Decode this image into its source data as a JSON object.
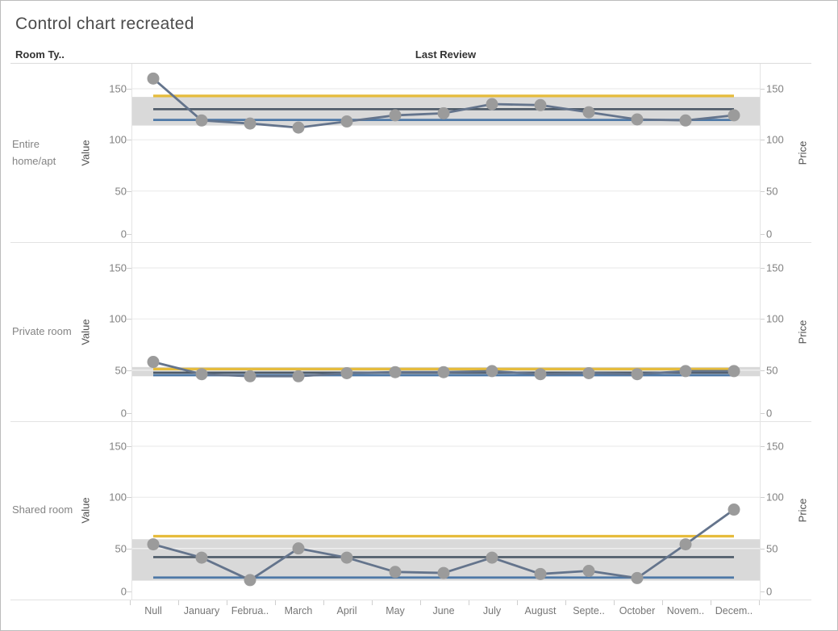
{
  "title": "Control chart recreated",
  "row_header": "Room Ty..",
  "column_header": "Last Review",
  "axes": {
    "left_title": "Value",
    "right_title": "Price",
    "ticks": [
      0,
      50,
      100,
      150
    ],
    "x_labels": [
      "Null",
      "January",
      "Februa..",
      "March",
      "April",
      "May",
      "June",
      "July",
      "August",
      "Septe..",
      "October",
      "Novem..",
      "Decem.."
    ]
  },
  "colors": {
    "ucl_line": "#e6bc3c",
    "center_line": "#4d5a68",
    "lcl_line": "#4e79a7",
    "series_line": "#64748c",
    "marker": "#9b9b9b",
    "band": "#d9d9d9",
    "gridline": "#efefef"
  },
  "chart_data": [
    {
      "type": "line",
      "row_label": "Entire home/apt",
      "categories": [
        "Null",
        "January",
        "Februa..",
        "March",
        "April",
        "May",
        "June",
        "July",
        "August",
        "Septe..",
        "October",
        "Novem..",
        "Decem.."
      ],
      "values": [
        160,
        119,
        116,
        112,
        118,
        124,
        126,
        135,
        134,
        127,
        120,
        119,
        124
      ],
      "ucl": 143,
      "center": 130,
      "lcl": 119.5,
      "band": [
        114,
        142
      ],
      "ylabel_left": "Value",
      "ylabel_right": "Price",
      "ylim": [
        0,
        174
      ],
      "grid": true
    },
    {
      "type": "line",
      "row_label": "Private room",
      "categories": [
        "Null",
        "January",
        "Februa..",
        "March",
        "April",
        "May",
        "June",
        "July",
        "August",
        "Septe..",
        "October",
        "Novem..",
        "Decem.."
      ],
      "values": [
        58,
        46,
        44,
        44,
        47,
        48,
        48,
        49,
        46,
        47,
        46,
        49,
        49
      ],
      "ucl": 51,
      "center": 47.5,
      "lcl": 45,
      "band": [
        44,
        53
      ],
      "ylabel_left": "Value",
      "ylabel_right": "Price",
      "ylim": [
        0,
        174
      ],
      "grid": true
    },
    {
      "type": "line",
      "row_label": "Shared room",
      "categories": [
        "Null",
        "January",
        "Februa..",
        "March",
        "April",
        "May",
        "June",
        "July",
        "August",
        "Septe..",
        "October",
        "Novem..",
        "Decem.."
      ],
      "values": [
        54,
        41,
        19,
        50,
        41,
        27,
        26,
        41,
        25,
        28,
        21,
        54,
        88
      ],
      "ucl": 62,
      "center": 41.5,
      "lcl": 21.5,
      "band": [
        18.5,
        59
      ],
      "ylabel_left": "Value",
      "ylabel_right": "Price",
      "ylim": [
        0,
        174
      ],
      "grid": true
    }
  ]
}
